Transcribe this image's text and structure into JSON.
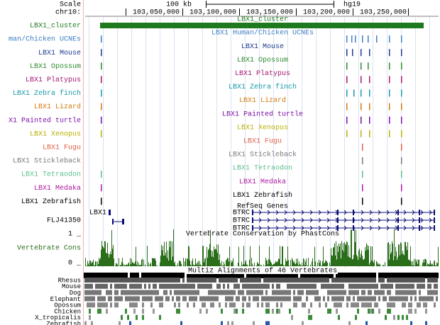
{
  "header": {
    "scale": "Scale",
    "chrom": "chr10:",
    "scale_bar": "100 kb",
    "assembly": "hg19",
    "positions": [
      "103,050,000",
      "103,100,000",
      "103,150,000",
      "103,200,000",
      "103,250,000"
    ]
  },
  "tracks": [
    {
      "label": "LBX1_cluster",
      "center_label": "LBX1_cluster",
      "color": "#1f7a1f"
    },
    {
      "label": "man/Chicken UCNEs",
      "center_label": "LBX1 Human/Chicken UCNEs",
      "color": "#3d7fc4"
    },
    {
      "label": "LBX1 Mouse",
      "center_label": "LBX1 Mouse",
      "color": "#1c3a8c"
    },
    {
      "label": "LBX1 Opossum",
      "center_label": "LBX1 Opossum",
      "color": "#2c8a2c"
    },
    {
      "label": "LBX1 Platypus",
      "center_label": "LBX1 Platypus",
      "color": "#a3186e"
    },
    {
      "label": "LBX1 Zebra finch",
      "center_label": "LBX1 Zebra finch",
      "color": "#1898a8"
    },
    {
      "label": "LBX1 Lizard",
      "center_label": "LBX1 Lizard",
      "color": "#d07a10"
    },
    {
      "label": "X1 Painted turtle",
      "center_label": "LBX1 Painted turtle",
      "color": "#7a10a8"
    },
    {
      "label": "LBX1 Xenopus",
      "center_label": "LBX1 Xenopus",
      "color": "#b8b000"
    },
    {
      "label": "LBX1 Fugu",
      "center_label": "LBX1 Fugu",
      "color": "#e06048"
    },
    {
      "label": "LBX1 Stickleback",
      "center_label": "LBX1 Stickleback",
      "color": "#7a7a7a"
    },
    {
      "label": "LBX1 Tetraodon",
      "center_label": "LBX1 Tetraodon",
      "color": "#5cc08c"
    },
    {
      "label": "LBX1 Medaka",
      "center_label": "LBX1 Medaka",
      "color": "#b01aa0"
    },
    {
      "label": "LBX1 Zebrafish",
      "center_label": "LBX1 Zebrafish",
      "color": "#000000"
    }
  ],
  "genes": {
    "title": "RefSeq Genes",
    "left_label": "FLJ41350",
    "items": [
      "LBX1",
      "BTRC",
      "BTRC",
      "BTRC"
    ]
  },
  "conservation": {
    "title": "Vertebrate Conservation by PhastCons",
    "label": "Vertebrate Cons",
    "max_label": "1 _",
    "min_label": "0 _"
  },
  "multiz": {
    "title": "Multiz Alignments of 46 Vertebrates",
    "species": [
      "Rhesus",
      "Mouse",
      "Dog",
      "Elephant",
      "Opossum",
      "Chicken",
      "X_tropicalis",
      "Zebrafish"
    ]
  }
}
